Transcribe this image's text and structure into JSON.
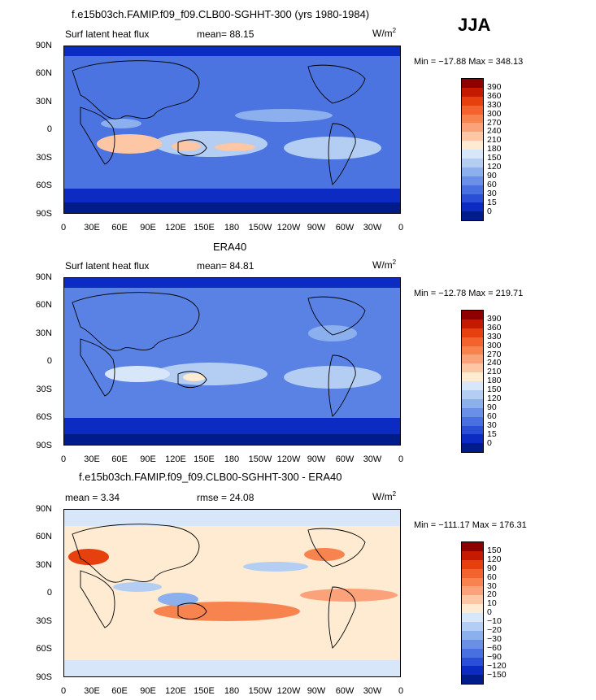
{
  "season_label": "JJA",
  "panels": [
    {
      "title": "f.e15b03ch.FAMIP.f09_f09.CLB00-SGHHT-300 (yrs 1980-1984)",
      "left_label": "Surf latent heat flux",
      "stat_label": "mean=  88.15",
      "units": "W/m",
      "units_sup": "2",
      "minmax": "Min = −17.88 Max = 348.13",
      "levels": [
        "390",
        "360",
        "330",
        "300",
        "270",
        "240",
        "210",
        "180",
        "150",
        "120",
        "90",
        "60",
        "30",
        "15",
        "0"
      ],
      "colors": [
        "#8e0000",
        "#c41a00",
        "#e6400e",
        "#f2632d",
        "#f7844f",
        "#fba27a",
        "#fdc6a4",
        "#feebd2",
        "#d7e6f8",
        "#b3cdf3",
        "#8cb0ee",
        "#6a8fe8",
        "#4870e0",
        "#2a4fd6",
        "#0c2bc2",
        "#001b8a"
      ]
    },
    {
      "title": "ERA40",
      "left_label": "Surf latent heat flux",
      "stat_label": "mean=  84.81",
      "units": "W/m",
      "units_sup": "2",
      "minmax": "Min = −12.78 Max = 219.71",
      "levels": [
        "390",
        "360",
        "330",
        "300",
        "270",
        "240",
        "210",
        "180",
        "150",
        "120",
        "90",
        "60",
        "30",
        "15",
        "0"
      ],
      "colors": [
        "#8e0000",
        "#c41a00",
        "#e6400e",
        "#f2632d",
        "#f7844f",
        "#fba27a",
        "#fdc6a4",
        "#feebd2",
        "#d7e6f8",
        "#b3cdf3",
        "#8cb0ee",
        "#6a8fe8",
        "#4870e0",
        "#2a4fd6",
        "#0c2bc2",
        "#001b8a"
      ]
    },
    {
      "title": "f.e15b03ch.FAMIP.f09_f09.CLB00-SGHHT-300 - ERA40",
      "left_label": "mean =    3.34",
      "stat_label": "rmse =  24.08",
      "units": "W/m",
      "units_sup": "2",
      "minmax": "Min = −111.17 Max = 176.31",
      "levels": [
        "150",
        "120",
        "90",
        "60",
        "30",
        "20",
        "10",
        "0",
        "−10",
        "−20",
        "−30",
        "−60",
        "−90",
        "−120",
        "−150"
      ],
      "colors": [
        "#8e0000",
        "#c41a00",
        "#e6400e",
        "#f2632d",
        "#f7844f",
        "#fba27a",
        "#fdc6a4",
        "#feebd2",
        "#d7e6f8",
        "#b3cdf3",
        "#8cb0ee",
        "#6a8fe8",
        "#4870e0",
        "#2a4fd6",
        "#0c2bc2",
        "#001b8a"
      ]
    }
  ],
  "lat_ticks": [
    "90N",
    "60N",
    "30N",
    "0",
    "30S",
    "60S",
    "90S"
  ],
  "lon_ticks": [
    "0",
    "30E",
    "60E",
    "90E",
    "120E",
    "150E",
    "180",
    "150W",
    "120W",
    "90W",
    "60W",
    "30W",
    "0"
  ]
}
